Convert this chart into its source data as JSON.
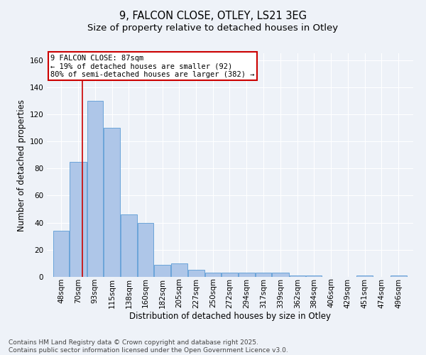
{
  "title1": "9, FALCON CLOSE, OTLEY, LS21 3EG",
  "title2": "Size of property relative to detached houses in Otley",
  "xlabel": "Distribution of detached houses by size in Otley",
  "ylabel": "Number of detached properties",
  "categories": [
    "48sqm",
    "70sqm",
    "93sqm",
    "115sqm",
    "138sqm",
    "160sqm",
    "182sqm",
    "205sqm",
    "227sqm",
    "250sqm",
    "272sqm",
    "294sqm",
    "317sqm",
    "339sqm",
    "362sqm",
    "384sqm",
    "406sqm",
    "429sqm",
    "451sqm",
    "474sqm",
    "496sqm"
  ],
  "bar_left_edges": [
    48,
    70,
    93,
    115,
    138,
    160,
    182,
    205,
    227,
    250,
    272,
    294,
    317,
    339,
    362,
    384,
    406,
    429,
    451,
    474,
    496
  ],
  "bar_widths": [
    22,
    23,
    22,
    23,
    22,
    22,
    23,
    22,
    23,
    22,
    22,
    23,
    22,
    23,
    22,
    22,
    23,
    22,
    23,
    22,
    23
  ],
  "values": [
    34,
    85,
    130,
    110,
    46,
    40,
    9,
    10,
    5,
    3,
    3,
    3,
    3,
    3,
    1,
    1,
    0,
    0,
    1,
    0,
    1
  ],
  "bar_color": "#aec6e8",
  "bar_edge_color": "#5b9bd5",
  "property_line_x": 87,
  "property_line_color": "#cc0000",
  "annotation_box_color": "#cc0000",
  "annotation_text": "9 FALCON CLOSE: 87sqm\n← 19% of detached houses are smaller (92)\n80% of semi-detached houses are larger (382) →",
  "ylim": [
    0,
    165
  ],
  "yticks": [
    0,
    20,
    40,
    60,
    80,
    100,
    120,
    140,
    160
  ],
  "background_color": "#eef2f8",
  "grid_color": "#ffffff",
  "footer_text": "Contains HM Land Registry data © Crown copyright and database right 2025.\nContains public sector information licensed under the Open Government Licence v3.0.",
  "title_fontsize": 10.5,
  "subtitle_fontsize": 9.5,
  "axis_label_fontsize": 8.5,
  "tick_fontsize": 7.5,
  "annotation_fontsize": 7.5,
  "footer_fontsize": 6.5
}
